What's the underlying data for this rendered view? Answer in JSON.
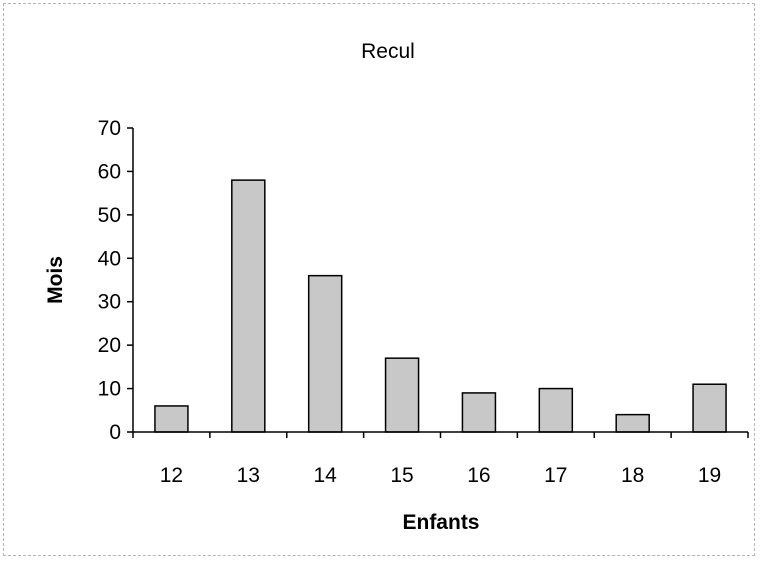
{
  "chart_data": {
    "type": "bar",
    "title": "Recul",
    "xlabel": "Enfants",
    "ylabel": "Mois",
    "categories": [
      "12",
      "13",
      "14",
      "15",
      "16",
      "17",
      "18",
      "19"
    ],
    "values": [
      6,
      58,
      36,
      17,
      9,
      10,
      4,
      11
    ],
    "ylim": [
      0,
      70
    ],
    "yticks": [
      "0",
      "10",
      "20",
      "30",
      "40",
      "50",
      "60",
      "70"
    ],
    "grid": false,
    "legend": "none",
    "bar_color": "#c8c8c8",
    "bar_edge_color": "#000000"
  }
}
